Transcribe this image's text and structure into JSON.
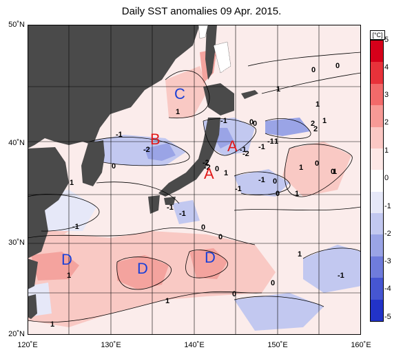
{
  "title": "Daily SST anomalies 09 Apr. 2015.",
  "unit_label": "[°C]",
  "latitude_labels": [
    "50˚N",
    "40˚N",
    "30˚N",
    "20˚N"
  ],
  "longitude_labels": [
    "120˚E",
    "130˚E",
    "140˚E",
    "150˚E",
    "160˚E"
  ],
  "colorbar": {
    "ticks": [
      "5",
      "4",
      "3",
      "2",
      "1",
      "0",
      "-1",
      "-2",
      "-3",
      "-4",
      "-5"
    ],
    "colors": [
      "#d6001a",
      "#e8323a",
      "#f26a6a",
      "#f79a96",
      "#fbc8c4",
      "#fde8e6",
      "#ffffff",
      "#e6e8f8",
      "#c2c8f0",
      "#9aa4e6",
      "#6f7cdc",
      "#4656d2",
      "#2233c8"
    ]
  },
  "map": {
    "land_color": "#4a4a4a",
    "sea_base_color": "#fbeceb",
    "region_markers": [
      {
        "letter": "C",
        "color": "#1a3fd6"
      },
      {
        "letter": "B",
        "color": "#e11919"
      },
      {
        "letter": "A",
        "color": "#e11919"
      },
      {
        "letter": "A",
        "color": "#e11919"
      },
      {
        "letter": "D",
        "color": "#1a3fd6"
      },
      {
        "letter": "D",
        "color": "#1a3fd6"
      },
      {
        "letter": "D",
        "color": "#1a3fd6"
      }
    ],
    "contour_labels": [
      "1",
      "-1",
      "-2",
      "0",
      "-1",
      "-2",
      "0",
      "-1",
      "-1",
      "0",
      "1",
      "-1",
      "0",
      "-1",
      "1",
      "2",
      "0",
      "0",
      "1",
      "0",
      "1",
      "1",
      "-1",
      "0",
      "-1",
      "0",
      "1",
      "0",
      "1",
      "-1",
      "0",
      "1",
      "1",
      "-2",
      "0",
      "1",
      "-1",
      "-2",
      "-1",
      "1",
      "0",
      "1",
      "1",
      "0",
      "2"
    ]
  }
}
